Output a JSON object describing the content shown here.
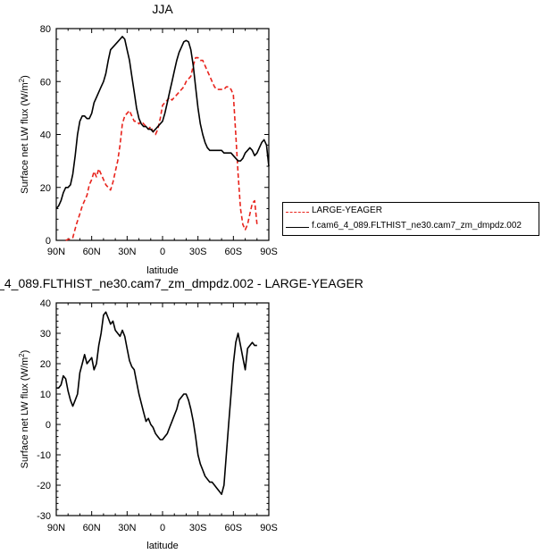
{
  "chart_data": [
    {
      "type": "line",
      "title": "JJA",
      "xlabel": "latitude",
      "ylabel": "Surface net LW flux (W/m",
      "ylabel_sup": "2",
      "ylabel_end": ")",
      "xlim": [
        90,
        -90
      ],
      "ylim": [
        0,
        80
      ],
      "xticks": [
        90,
        60,
        30,
        0,
        -30,
        -60,
        -90
      ],
      "xtick_labels": [
        "90N",
        "60N",
        "30N",
        "0",
        "30S",
        "60S",
        "90S"
      ],
      "yticks": [
        0,
        20,
        40,
        60,
        80
      ],
      "ytick_labels": [
        "0",
        "20",
        "40",
        "60",
        "80"
      ],
      "legend": "right",
      "series": [
        {
          "name": "LARGE-YEAGER",
          "color": "#e8231c",
          "dash": true,
          "x": [
            82,
            79,
            76,
            73,
            70,
            68,
            66,
            64,
            62,
            60,
            58,
            56,
            54,
            52,
            50,
            48,
            46,
            44,
            42,
            40,
            38,
            36,
            34,
            32,
            30,
            28,
            26,
            24,
            22,
            20,
            18,
            16,
            14,
            12,
            10,
            8,
            6,
            4,
            2,
            0,
            -2,
            -4,
            -6,
            -8,
            -10,
            -12,
            -14,
            -16,
            -18,
            -20,
            -22,
            -24,
            -26,
            -28,
            -30,
            -32,
            -34,
            -36,
            -38,
            -40,
            -42,
            -44,
            -46,
            -48,
            -50,
            -52,
            -54,
            -56,
            -58,
            -60,
            -62,
            -64,
            -66,
            -68,
            -70,
            -72,
            -74,
            -76,
            -78,
            -80
          ],
          "y": [
            0,
            0.5,
            1,
            6,
            10,
            13,
            15,
            17,
            21,
            23,
            26,
            24,
            27,
            25,
            23,
            21,
            20,
            19,
            22,
            26,
            30,
            36,
            44,
            47,
            48,
            49,
            47,
            45,
            45,
            44,
            45,
            44,
            43,
            42,
            43,
            41,
            40,
            42,
            46,
            51,
            52,
            53,
            54,
            53,
            54,
            55,
            56,
            57,
            58,
            60,
            61,
            62,
            66,
            69,
            69,
            68,
            68,
            66,
            64,
            62,
            60,
            58,
            57,
            57,
            57,
            57,
            58,
            58,
            57,
            55,
            40,
            25,
            12,
            6,
            4,
            6,
            10,
            14,
            15,
            6
          ]
        },
        {
          "name": "f.cam6_4_089.FLTHIST_ne30.cam7_zm_dmpdz.002",
          "color": "#000000",
          "dash": false,
          "x": [
            90,
            88,
            86,
            84,
            82,
            80,
            78,
            76,
            74,
            72,
            70,
            68,
            66,
            64,
            62,
            60,
            58,
            56,
            54,
            52,
            50,
            48,
            46,
            44,
            42,
            40,
            38,
            36,
            34,
            32,
            30,
            28,
            26,
            24,
            22,
            20,
            18,
            16,
            14,
            12,
            10,
            8,
            6,
            4,
            2,
            0,
            -2,
            -4,
            -6,
            -8,
            -10,
            -12,
            -14,
            -16,
            -18,
            -20,
            -22,
            -24,
            -26,
            -28,
            -30,
            -32,
            -34,
            -36,
            -38,
            -40,
            -42,
            -44,
            -46,
            -48,
            -50,
            -52,
            -54,
            -56,
            -58,
            -60,
            -62,
            -64,
            -66,
            -68,
            -70,
            -72,
            -74,
            -76,
            -78,
            -80,
            -82,
            -84,
            -86,
            -88,
            -90
          ],
          "y": [
            12,
            13,
            15,
            18,
            20,
            20,
            21,
            25,
            32,
            40,
            45,
            47,
            47,
            46,
            46,
            48,
            52,
            54,
            56,
            58,
            60,
            63,
            68,
            72,
            73,
            74,
            75,
            76,
            77,
            76,
            72,
            68,
            62,
            56,
            50,
            46,
            44,
            43,
            43,
            42,
            42,
            41,
            42,
            43,
            44,
            45,
            48,
            52,
            56,
            60,
            64,
            68,
            71,
            73,
            75,
            75.5,
            75,
            72,
            66,
            58,
            50,
            44,
            40,
            37,
            35,
            34,
            34,
            34,
            34,
            34,
            34,
            33,
            33,
            33,
            33,
            32,
            31,
            30,
            30,
            31,
            33,
            34,
            35,
            34,
            32,
            33,
            35,
            37,
            38,
            36,
            28
          ]
        }
      ]
    },
    {
      "type": "line",
      "title": "_4_089.FLTHIST_ne30.cam7_zm_dmpdz.002 - LARGE-YEAGER",
      "xlabel": "latitude",
      "ylabel": "Surface net LW flux (W/m",
      "ylabel_sup": "2",
      "ylabel_end": ")",
      "xlim": [
        90,
        -90
      ],
      "ylim": [
        -30,
        40
      ],
      "xticks": [
        90,
        60,
        30,
        0,
        -30,
        -60,
        -90
      ],
      "xtick_labels": [
        "90N",
        "60N",
        "30N",
        "0",
        "30S",
        "60S",
        "90S"
      ],
      "yticks": [
        -30,
        -20,
        -10,
        0,
        10,
        20,
        30,
        40
      ],
      "ytick_labels": [
        "-30",
        "-20",
        "-10",
        "0",
        "10",
        "20",
        "30",
        "40"
      ],
      "series": [
        {
          "color": "#000000",
          "dash": false,
          "x": [
            90,
            88,
            86,
            84,
            82,
            80,
            78,
            76,
            74,
            72,
            70,
            68,
            66,
            64,
            62,
            60,
            58,
            56,
            54,
            52,
            50,
            48,
            46,
            44,
            42,
            40,
            38,
            36,
            34,
            32,
            30,
            28,
            26,
            24,
            22,
            20,
            18,
            16,
            14,
            12,
            10,
            8,
            6,
            4,
            2,
            0,
            -2,
            -4,
            -6,
            -8,
            -10,
            -12,
            -14,
            -16,
            -18,
            -20,
            -22,
            -24,
            -26,
            -28,
            -30,
            -32,
            -34,
            -36,
            -38,
            -40,
            -42,
            -44,
            -46,
            -48,
            -50,
            -52,
            -54,
            -56,
            -58,
            -60,
            -62,
            -64,
            -66,
            -68,
            -70,
            -72,
            -74,
            -76,
            -78,
            -80
          ],
          "y": [
            12,
            12,
            13,
            16,
            15,
            11,
            8,
            6,
            8,
            10,
            17,
            20,
            23,
            20,
            21,
            22,
            18,
            20,
            26,
            30,
            36,
            37,
            35,
            33,
            34,
            31,
            30,
            29,
            31,
            29,
            25,
            21,
            19,
            18,
            14,
            10,
            7,
            4,
            1,
            2,
            0,
            -1,
            -3,
            -4,
            -5,
            -5,
            -4,
            -3,
            -1,
            1,
            3,
            5,
            8,
            9,
            10,
            10,
            8,
            5,
            1,
            -4,
            -10,
            -13,
            -15,
            -17,
            -18,
            -19,
            -19,
            -20,
            -21,
            -22,
            -23,
            -20,
            -10,
            0,
            10,
            20,
            27,
            30,
            26,
            22,
            18,
            25,
            26,
            27,
            26,
            26
          ]
        }
      ]
    }
  ]
}
